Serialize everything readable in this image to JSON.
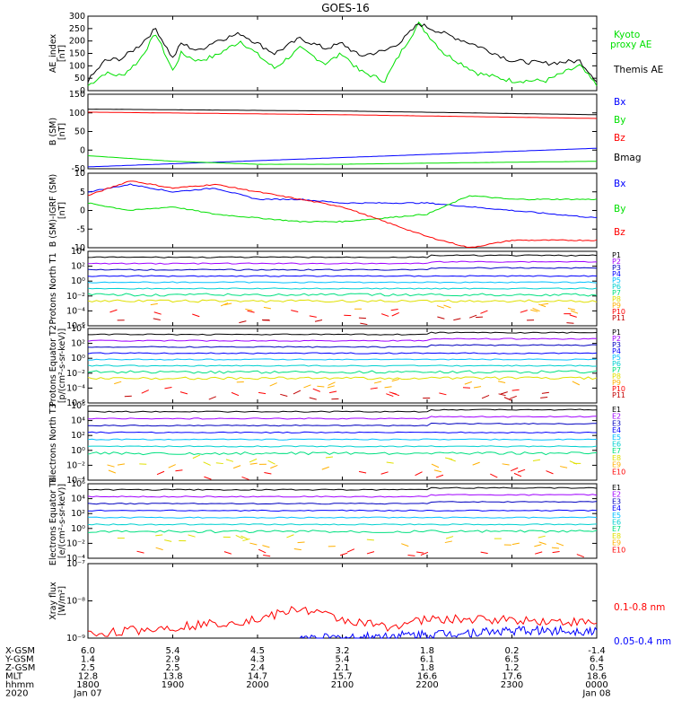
{
  "title": "GOES-16",
  "colors": {
    "black": "#000000",
    "blue": "#0000ff",
    "green": "#00e000",
    "red": "#ff0000",
    "purple": "#a000ff",
    "navy": "#0000c0",
    "cyan": "#00c0ff",
    "teal": "#00d0d0",
    "ltgreen": "#00e080",
    "yellow": "#e0e000",
    "orange": "#ffb000",
    "darkred": "#c00000"
  },
  "time_axis": {
    "ticks": [
      "1800",
      "1900",
      "2000",
      "2100",
      "2200",
      "2300",
      "0000"
    ]
  },
  "orbit_table": {
    "rows": [
      {
        "label": "X-GSM",
        "values": [
          "6.0",
          "5.4",
          "4.5",
          "3.2",
          "1.8",
          "0.2",
          "-1.4"
        ]
      },
      {
        "label": "Y-GSM",
        "values": [
          "1.4",
          "2.9",
          "4.3",
          "5.4",
          "6.1",
          "6.5",
          "6.4"
        ]
      },
      {
        "label": "Z-GSM",
        "values": [
          "2.5",
          "2.5",
          "2.4",
          "2.1",
          "1.8",
          "1.2",
          "0.5"
        ]
      },
      {
        "label": "MLT",
        "values": [
          "12.8",
          "13.8",
          "14.7",
          "15.7",
          "16.6",
          "17.6",
          "18.6"
        ]
      },
      {
        "label": "hhmm",
        "values": [
          "1800",
          "1900",
          "2000",
          "2100",
          "2200",
          "2300",
          "0000"
        ]
      },
      {
        "label": "2020",
        "values": [
          "Jan 07",
          "",
          "",
          "",
          "",
          "",
          "Jan 08"
        ]
      }
    ]
  },
  "chart_data": [
    {
      "type": "line",
      "panel": "ae",
      "ylabel": "AE_index [nT]",
      "ylim": [
        0,
        300
      ],
      "yticks": [
        "0",
        "50",
        "100",
        "150",
        "200",
        "250",
        "300"
      ],
      "series": [
        {
          "name": "Kyoto proxy AE",
          "color": "green",
          "x": [
            0,
            0.2,
            0.4,
            0.6,
            0.8,
            1.0,
            1.1,
            1.3,
            1.5,
            1.8,
            2.2,
            2.5,
            2.8,
            3.0,
            3.2,
            3.5,
            3.7,
            3.9,
            4.2,
            4.6,
            5,
            5.4,
            5.8,
            6
          ],
          "values": [
            20,
            70,
            60,
            120,
            230,
            80,
            150,
            120,
            140,
            200,
            90,
            170,
            110,
            150,
            80,
            40,
            160,
            270,
            150,
            70,
            40,
            40,
            100,
            20
          ]
        },
        {
          "name": "Themis AE",
          "color": "black",
          "x": [
            0,
            0.2,
            0.4,
            0.6,
            0.8,
            1.0,
            1.1,
            1.3,
            1.5,
            1.8,
            2.2,
            2.5,
            2.8,
            3.0,
            3.2,
            3.5,
            3.7,
            3.9,
            4.2,
            4.6,
            5,
            5.4,
            5.8,
            6
          ],
          "values": [
            40,
            120,
            130,
            180,
            250,
            130,
            190,
            160,
            200,
            230,
            150,
            210,
            170,
            190,
            140,
            160,
            200,
            270,
            230,
            180,
            120,
            110,
            120,
            40
          ]
        }
      ]
    },
    {
      "type": "line",
      "panel": "b_sm",
      "ylabel": "B (SM) [nT]",
      "ylim": [
        -50,
        150
      ],
      "yticks": [
        "-50",
        "0",
        "50",
        "100",
        "150"
      ],
      "series": [
        {
          "name": "Bx",
          "color": "blue",
          "x": [
            0,
            6
          ],
          "values": [
            -45,
            5
          ]
        },
        {
          "name": "By",
          "color": "green",
          "x": [
            0,
            1,
            2,
            3,
            4,
            6
          ],
          "values": [
            -15,
            -30,
            -38,
            -38,
            -35,
            -30
          ]
        },
        {
          "name": "Bz",
          "color": "red",
          "x": [
            0,
            3,
            6
          ],
          "values": [
            102,
            95,
            85
          ]
        },
        {
          "name": "Bmag",
          "color": "black",
          "x": [
            0,
            3,
            6
          ],
          "values": [
            110,
            105,
            95
          ]
        }
      ]
    },
    {
      "type": "line",
      "panel": "b_igrf",
      "ylabel": "B (SM)-IGRF (SM) [nT]",
      "ylim": [
        -10,
        10
      ],
      "yticks": [
        "-10",
        "-5",
        "0",
        "5",
        "10"
      ],
      "series": [
        {
          "name": "Bx",
          "color": "blue",
          "x": [
            0,
            0.5,
            1,
            1.5,
            2,
            2.5,
            3,
            4,
            5,
            6
          ],
          "values": [
            5,
            7,
            5,
            6,
            3,
            3,
            2,
            2,
            0,
            -2
          ]
        },
        {
          "name": "By",
          "color": "green",
          "x": [
            0,
            0.5,
            1,
            1.5,
            2,
            2.5,
            3,
            4,
            4.5,
            5,
            6
          ],
          "values": [
            2,
            0,
            1,
            -1,
            -2,
            -3,
            -3,
            -1,
            4,
            3,
            3
          ]
        },
        {
          "name": "Bz",
          "color": "red",
          "x": [
            0,
            0.5,
            1,
            1.5,
            2,
            2.5,
            3,
            3.5,
            4,
            4.5,
            5,
            6
          ],
          "values": [
            4,
            8,
            6,
            7,
            5,
            3,
            1,
            -3,
            -7,
            -10,
            -8,
            -8
          ]
        }
      ]
    },
    {
      "type": "line",
      "panel": "protons_t1",
      "ylabel": "Protons North T1",
      "ylim": [
        -6,
        4
      ],
      "log": true,
      "yticks": [
        "10⁻⁶",
        "10⁻⁴",
        "10⁻²",
        "10⁰",
        "10²",
        "10⁴"
      ],
      "labels": [
        "P1",
        "P2",
        "P3",
        "P4",
        "P5",
        "P6",
        "P7",
        "P8",
        "P9",
        "P10",
        "P11"
      ]
    },
    {
      "type": "line",
      "panel": "protons_t2",
      "ylabel": "Protons Equator T2 [p/(cm²-s-sr-keV)]",
      "ylim": [
        -6,
        4
      ],
      "log": true,
      "yticks": [
        "10⁻⁶",
        "10⁻⁴",
        "10⁻²",
        "10⁰",
        "10²",
        "10⁴"
      ],
      "labels": [
        "P1",
        "P2",
        "P3",
        "P4",
        "P5",
        "P6",
        "P7",
        "P8",
        "P9",
        "P10",
        "P11"
      ]
    },
    {
      "type": "line",
      "panel": "electrons_t3",
      "ylabel": "Electrons North T3",
      "ylim": [
        -4,
        6
      ],
      "log": true,
      "yticks": [
        "10⁻⁴",
        "10⁻²",
        "10⁰",
        "10²",
        "10⁴",
        "10⁶"
      ],
      "labels": [
        "E1",
        "E2",
        "E3",
        "E4",
        "E5",
        "E6",
        "E7",
        "E8",
        "E9",
        "E10"
      ]
    },
    {
      "type": "line",
      "panel": "electrons_t4",
      "ylabel": "Electrons Equator T4 [e/(cm²-s-sr-keV)]",
      "ylim": [
        -4,
        6
      ],
      "log": true,
      "yticks": [
        "10⁻⁴",
        "10⁻²",
        "10⁰",
        "10²",
        "10⁴",
        "10⁶"
      ],
      "labels": [
        "E1",
        "E2",
        "E3",
        "E4",
        "E5",
        "E6",
        "E7",
        "E8",
        "E9",
        "E10"
      ]
    },
    {
      "type": "line",
      "panel": "xray",
      "ylabel": "Xray flux [W/m²]",
      "ylim": [
        -9,
        -7
      ],
      "log": true,
      "yticks": [
        "10⁻⁹",
        "10⁻⁸",
        "10⁻⁷"
      ],
      "series": [
        {
          "name": "0.1-0.8 nm",
          "color": "red",
          "x": [
            0,
            1,
            2,
            2.5,
            3,
            3.5,
            4,
            5,
            6
          ],
          "values": [
            -8.9,
            -8.7,
            -8.5,
            -8.2,
            -8.5,
            -8.7,
            -8.5,
            -8.5,
            -8.6
          ]
        },
        {
          "name": "0.05-0.4 nm",
          "color": "blue",
          "x": [
            2.5,
            3,
            4,
            5,
            6
          ],
          "values": [
            -9.0,
            -9.0,
            -8.9,
            -8.8,
            -8.8
          ]
        }
      ]
    }
  ],
  "legends": {
    "ae": [
      "Kyoto",
      "proxy AE",
      "Themis AE"
    ],
    "b_sm": [
      "Bx",
      "By",
      "Bz",
      "Bmag"
    ],
    "b_igrf": [
      "Bx",
      "By",
      "Bz"
    ],
    "xray": [
      "0.1-0.8 nm",
      "0.05-0.4 nm"
    ]
  }
}
